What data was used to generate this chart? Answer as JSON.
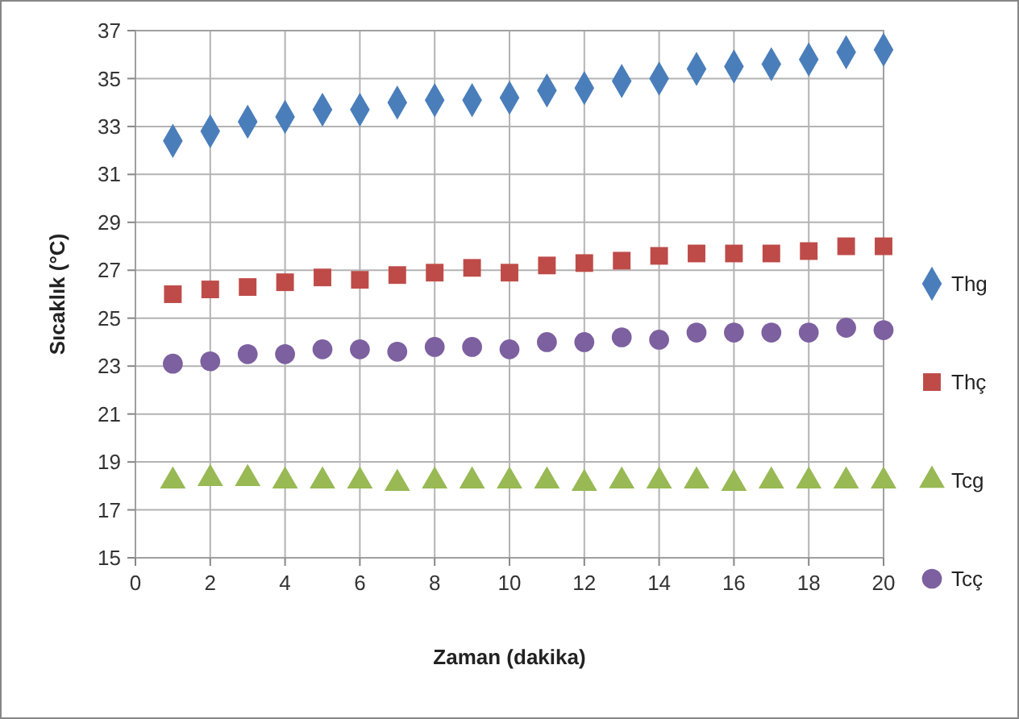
{
  "chart_data": {
    "type": "scatter",
    "xlabel": "Zaman (dakika)",
    "ylabel": "Sıcaklık (°C)",
    "x": [
      1,
      2,
      3,
      4,
      5,
      6,
      7,
      8,
      9,
      10,
      11,
      12,
      13,
      14,
      15,
      16,
      17,
      18,
      19,
      20
    ],
    "xlim": [
      0,
      20
    ],
    "xticks": [
      0,
      2,
      4,
      6,
      8,
      10,
      12,
      14,
      16,
      18,
      20
    ],
    "ylim": [
      15,
      37
    ],
    "yticks": [
      15,
      17,
      19,
      21,
      23,
      25,
      27,
      29,
      31,
      33,
      35,
      37
    ],
    "grid": true,
    "legend": "right",
    "series": [
      {
        "name": "Thg",
        "color": "#4a7ebb",
        "marker": "diamond",
        "values": [
          32.4,
          32.8,
          33.2,
          33.4,
          33.7,
          33.7,
          34.0,
          34.1,
          34.1,
          34.2,
          34.5,
          34.6,
          34.9,
          35.0,
          35.4,
          35.5,
          35.6,
          35.8,
          36.1,
          36.2
        ]
      },
      {
        "name": "Thç",
        "color": "#be4b48",
        "marker": "square",
        "values": [
          26.0,
          26.2,
          26.3,
          26.5,
          26.7,
          26.6,
          26.8,
          26.9,
          27.1,
          26.9,
          27.2,
          27.3,
          27.4,
          27.6,
          27.7,
          27.7,
          27.7,
          27.8,
          28.0,
          28.0
        ]
      },
      {
        "name": "Tcg",
        "color": "#98b954",
        "marker": "triangle",
        "values": [
          18.2,
          18.3,
          18.3,
          18.2,
          18.2,
          18.2,
          18.1,
          18.2,
          18.2,
          18.2,
          18.2,
          18.1,
          18.2,
          18.2,
          18.2,
          18.1,
          18.2,
          18.2,
          18.2,
          18.2
        ]
      },
      {
        "name": "Tcç",
        "color": "#7d60a0",
        "marker": "circle",
        "values": [
          23.1,
          23.2,
          23.5,
          23.5,
          23.7,
          23.7,
          23.6,
          23.8,
          23.8,
          23.7,
          24.0,
          24.0,
          24.2,
          24.1,
          24.4,
          24.4,
          24.4,
          24.4,
          24.6,
          24.5
        ]
      }
    ]
  }
}
